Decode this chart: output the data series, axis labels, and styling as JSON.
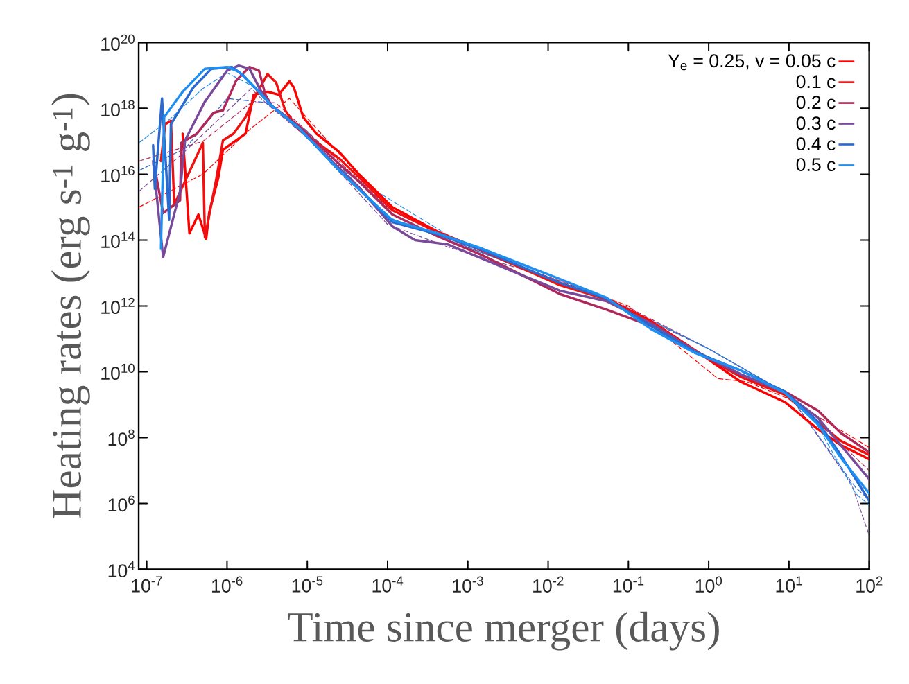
{
  "chart_data": {
    "type": "line",
    "xlabel": "Time since merger (days)",
    "ylabel": "Heating rates (erg s$^{-1}$ g$^{-1}$)",
    "log": "xy",
    "legend": "top right",
    "xlim": [
      7.94e-08,
      100
    ],
    "ylim": [
      10000.0,
      1e+20
    ],
    "xticks": [
      {
        "value": 1e-07,
        "label": "10$^{-7}$"
      },
      {
        "value": 1e-06,
        "label": "10$^{-6}$"
      },
      {
        "value": 1e-05,
        "label": "10$^{-5}$"
      },
      {
        "value": 0.0001,
        "label": "10$^{-4}$"
      },
      {
        "value": 0.001,
        "label": "10$^{-3}$"
      },
      {
        "value": 0.01,
        "label": "10$^{-2}$"
      },
      {
        "value": 0.1,
        "label": "10$^{-1}$"
      },
      {
        "value": 1,
        "label": "10$^{0}$"
      },
      {
        "value": 10,
        "label": "10$^{1}$"
      },
      {
        "value": 100,
        "label": "10$^{2}$"
      }
    ],
    "yticks": [
      {
        "value": 10000.0,
        "label": "10$^{4}$"
      },
      {
        "value": 1000000.0,
        "label": "10$^{6}$"
      },
      {
        "value": 100000000.0,
        "label": "10$^{8}$"
      },
      {
        "value": 10000000000.0,
        "label": "10$^{10}$"
      },
      {
        "value": 1000000000000.0,
        "label": "10$^{12}$"
      },
      {
        "value": 100000000000000.0,
        "label": "10$^{14}$"
      },
      {
        "value": 1e+16,
        "label": "10$^{16}$"
      },
      {
        "value": 1e+18,
        "label": "10$^{18}$"
      },
      {
        "value": 1e+20,
        "label": "10$^{20}$"
      }
    ],
    "series": [
      {
        "name": "Y$_{e}$ = 0.25, v = 0.05 c",
        "color": "#ff0000",
        "line_style": "solid",
        "x": [
          2.8e-07,
          3.4e-07,
          4.4e-07,
          5.5e-07,
          6e-07,
          7.8e-07,
          8.9e-07,
          1.7e-06,
          2.15e-06,
          3.2e-06,
          4.4e-06,
          6e-06,
          6.8e-06,
          8.9e-06,
          1.3e-05,
          2.5e-05,
          4.4e-05,
          0.000115,
          0.00042,
          0.0015,
          0.014,
          0.053,
          0.19,
          0.68,
          2.5,
          8.9,
          23,
          44,
          100
        ],
        "values": [
          1.7e+17,
          160000000000000.0,
          600000000000000.0,
          110000000000000.0,
          690000000000000.0,
          7900000000000000.0,
          5.5e+16,
          1.7e+17,
          2.6e+18,
          3.2e+18,
          2.6e+18,
          6.6e+18,
          4.3e+18,
          5.4e+17,
          1.7e+17,
          4.7e+16,
          1e+16,
          1000000000000000.0,
          180000000000000.0,
          50000000000000.0,
          4500000000000.0,
          1700000000000.0,
          350000000000.0,
          45000000000.0,
          5000000000.0,
          1200000000.0,
          180000000.0,
          60000000.0,
          22000000.0
        ]
      },
      {
        "name": "0.1 c",
        "color": "#f01010",
        "line_style": "solid",
        "x": [
          1.5e-07,
          1.7e-07,
          2e-07,
          2.2e-07,
          5e-07,
          5.3e-07,
          7.4e-07,
          8.9e-07,
          1.2e-06,
          1.7e-06,
          2.3e-06,
          3.2e-06,
          4.1e-06,
          5.3e-06,
          7.8e-06,
          2.5e-05,
          4.4e-05,
          0.000115,
          0.00042,
          0.0015,
          0.014,
          0.053,
          0.19,
          0.68,
          2.5,
          8.9,
          23,
          44,
          100
        ],
        "values": [
          2.5e+16,
          3.3e+17,
          4.2e+17,
          1200000000000000.0,
          9e+16,
          120000000000000.0,
          7900000000000000.0,
          1.07e+17,
          1.7e+17,
          5.4e+17,
          2.6e+18,
          1.1e+19,
          6e+18,
          8.7e+17,
          2.3e+17,
          3e+16,
          8000000000000000.0,
          800000000000000.0,
          170000000000000.0,
          48000000000000.0,
          4300000000000.0,
          1600000000000.0,
          320000000000.0,
          43000000000.0,
          7000000000.0,
          2000000000.0,
          300000000.0,
          80000000.0,
          30000000.0
        ]
      },
      {
        "name": "0.2 c",
        "color": "#b0285a",
        "line_style": "solid",
        "x": [
          1.3e-07,
          1.6e-07,
          2.6e-07,
          2.7e-07,
          4.2e-07,
          6.8e-07,
          8.9e-07,
          1.3e-06,
          1.9e-06,
          2.5e-06,
          3e-06,
          3.6e-06,
          7.8e-06,
          2.5e-05,
          4.4e-05,
          0.000115,
          0.00042,
          0.0015,
          0.014,
          0.053,
          0.19,
          0.68,
          2.5,
          8.9,
          23,
          44,
          100
        ],
        "values": [
          1e+16,
          660000000000000.0,
          1600000000000000.0,
          9e+16,
          1.7e+17,
          7.4e+17,
          8.7e+17,
          7e+18,
          1.8e+19,
          1.4e+19,
          2.6e+18,
          1.2e+18,
          3e+17,
          2e+16,
          6000000000000000.0,
          600000000000000.0,
          130000000000000.0,
          35000000000000.0,
          2300000000000.0,
          780000000000.0,
          250000000000.0,
          40000000000.0,
          8000000000.0,
          2500000000.0,
          660000000.0,
          140000000.0,
          36000000.0
        ]
      },
      {
        "name": "0.3 c",
        "color": "#7a4a9a",
        "line_style": "solid",
        "x": [
          1.2e-07,
          1.6e-07,
          2.6e-07,
          3e-07,
          5.3e-07,
          1e-06,
          1.4e-06,
          1.9e-06,
          2.8e-06,
          3.6e-06,
          7.8e-06,
          2.5e-05,
          4.4e-05,
          0.000115,
          0.00022,
          0.00056,
          0.014,
          0.053,
          0.19,
          0.68,
          2.5,
          8.9,
          23,
          44,
          100
        ],
        "values": [
          2.5e+16,
          30000000000000.0,
          3000000000000000.0,
          1.07e+17,
          1.6e+18,
          1.4e+19,
          2e+19,
          1.6e+19,
          2.6e+18,
          1.2e+18,
          2.5e+17,
          1.5e+16,
          4000000000000000.0,
          260000000000000.0,
          100000000000000.0,
          74000000000000.0,
          2900000000000.0,
          1400000000000.0,
          300000000000.0,
          43000000000.0,
          8500000000.0,
          2300000000.0,
          400000000.0,
          60000000.0,
          5500000.0
        ]
      },
      {
        "name": "0.4 c",
        "color": "#2a6ad0",
        "line_style": "solid",
        "x": [
          1.2e-07,
          1.26e-07,
          1.55e-07,
          1.9e-07,
          2e-07,
          3.8e-07,
          6.4e-07,
          1.15e-06,
          1.6e-06,
          3.6e-06,
          7.8e-06,
          2.5e-05,
          4.4e-05,
          0.000115,
          0.00042,
          0.0015,
          0.014,
          0.053,
          0.19,
          0.68,
          2.5,
          8.9,
          23,
          44,
          100
        ],
        "values": [
          7.6e+16,
          3600000000000000.0,
          2e+18,
          410000000000000.0,
          3.3e+17,
          4.3e+18,
          1.6e+19,
          1.8e+19,
          1e+19,
          1.2e+18,
          2.6e+17,
          1.3e+16,
          3500000000000000.0,
          350000000000000.0,
          150000000000000.0,
          50000000000000.0,
          5000000000000.0,
          1700000000000.0,
          250000000000.0,
          40000000000.0,
          11000000000.0,
          2500000000.0,
          300000000.0,
          30000000.0,
          1200000.0
        ]
      },
      {
        "name": "0.5 c",
        "color": "#1e8ff0",
        "line_style": "solid",
        "x": [
          1.5e-07,
          1.65e-07,
          2.8e-07,
          5.3e-07,
          1e-06,
          1.4e-06,
          2.3e-06,
          3.6e-06,
          7.8e-06,
          2.5e-05,
          4.4e-05,
          0.000115,
          0.00042,
          0.0015,
          0.014,
          0.053,
          0.19,
          0.68,
          2.5,
          8.9,
          23,
          44,
          100
        ],
        "values": [
          54000000000000.0,
          5.4e+17,
          3.2e+18,
          1.6e+19,
          1.8e+19,
          1.3e+19,
          4e+18,
          1.2e+18,
          2.6e+17,
          1.3e+16,
          3500000000000000.0,
          400000000000000.0,
          160000000000000.0,
          55000000000000.0,
          6600000000000.0,
          1800000000000.0,
          200000000000.0,
          37000000000.0,
          11000000000.0,
          2300000000.0,
          250000000.0,
          25000000.0,
          2000000.0
        ]
      },
      {
        "color": "#ff0000",
        "line_style": "dashed",
        "x": [
          8e-08,
          5e-07,
          2e-06,
          6e-06,
          1e-05,
          0.0001,
          0.001,
          0.1,
          1.3,
          3,
          10,
          100
        ],
        "values": [
          1000000000000000.0,
          1e+16,
          2.5e+17,
          2e+18,
          5e+17,
          1000000000000000.0,
          60000000000000.0,
          1000000000000.0,
          6200000000.0,
          5000000000.0,
          1500000000.0,
          50000000.0
        ]
      },
      {
        "color": "#b0285a",
        "line_style": "dashed",
        "x": [
          8e-08,
          5e-07,
          2e-06,
          4e-06,
          1e-05,
          0.0001,
          0.001,
          0.1,
          1,
          10,
          100
        ],
        "values": [
          2.5e+16,
          1e+17,
          1.5e+18,
          1.5e+18,
          2e+17,
          1000000000000000.0,
          60000000000000.0,
          900000000000.0,
          50000000000.0,
          2000000000.0,
          10000000.0
        ]
      },
      {
        "color": "#7a4a9a",
        "line_style": "dashed",
        "x": [
          8e-08,
          3e-07,
          2e-06,
          3e-06,
          1e-05,
          0.0001,
          0.00056,
          0.019,
          1,
          10,
          60,
          100
        ],
        "values": [
          3000000000000000.0,
          5e+16,
          4e+18,
          1.5e+18,
          1.3e+17,
          300000000000000.0,
          62000000000000.0,
          4700000000000.0,
          50000000000.0,
          2000000000.0,
          4000000.0,
          107000.0
        ]
      },
      {
        "color": "#2a6ad0",
        "line_style": "dashed",
        "x": [
          8e-08,
          3e-07,
          1e-06,
          3e-06,
          1e-05,
          0.0001,
          0.001,
          0.1,
          1,
          10,
          68,
          100
        ],
        "values": [
          1.3e+16,
          6e+16,
          2e+18,
          1.5e+18,
          2e+17,
          500000000000000.0,
          60000000000000.0,
          800000000000.0,
          50000000000.0,
          2000000000.0,
          3000000.0,
          1300000.0
        ]
      },
      {
        "color": "#1e8ff0",
        "line_style": "dashed",
        "x": [
          8e-08,
          2e-07,
          5e-07,
          1e-06,
          2e-06,
          5e-06,
          2.5e-05,
          0.001,
          0.1,
          1,
          10,
          20,
          68,
          100
        ],
        "values": [
          9e+16,
          5e+17,
          4e+18,
          1.2e+19,
          5e+18,
          6e+17,
          1.5e+16,
          60000000000000.0,
          800000000000.0,
          50000000000.0,
          2000000000.0,
          400000000.0,
          2000000.0,
          900000.0
        ]
      }
    ]
  }
}
